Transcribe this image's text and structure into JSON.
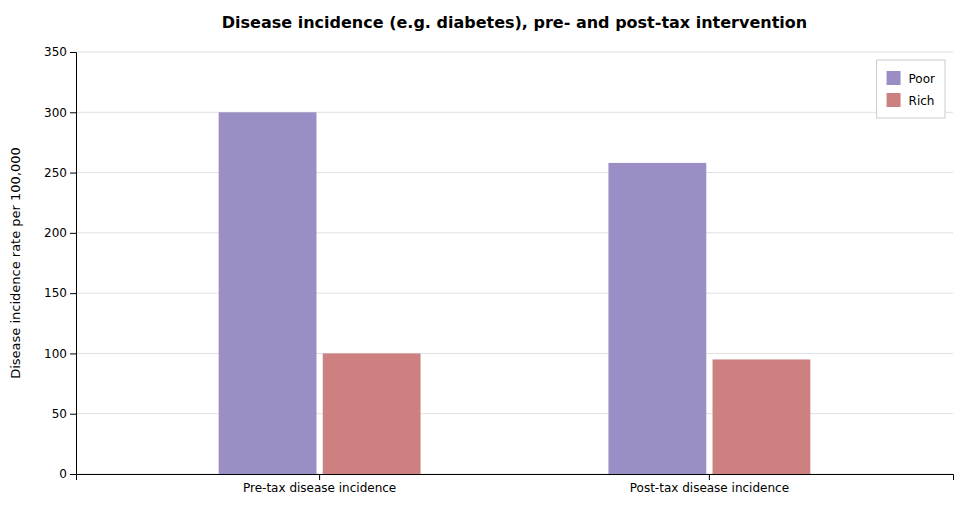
{
  "chart_data": {
    "type": "bar",
    "title": "Disease incidence (e.g. diabetes), pre- and post-tax intervention",
    "ylabel": "Disease incidence rate per 100,000",
    "categories": [
      "Pre-tax disease incidence",
      "Post-tax disease incidence"
    ],
    "series": [
      {
        "name": "Poor",
        "color": "#9b8ec4",
        "values": [
          300,
          258
        ]
      },
      {
        "name": "Rich",
        "color": "#cc8080",
        "values": [
          100,
          95
        ]
      }
    ],
    "ylim": [
      0,
      350
    ],
    "yticks": [
      0,
      50,
      100,
      150,
      200,
      250,
      300,
      350
    ],
    "grid": true,
    "legend": "upper right"
  }
}
